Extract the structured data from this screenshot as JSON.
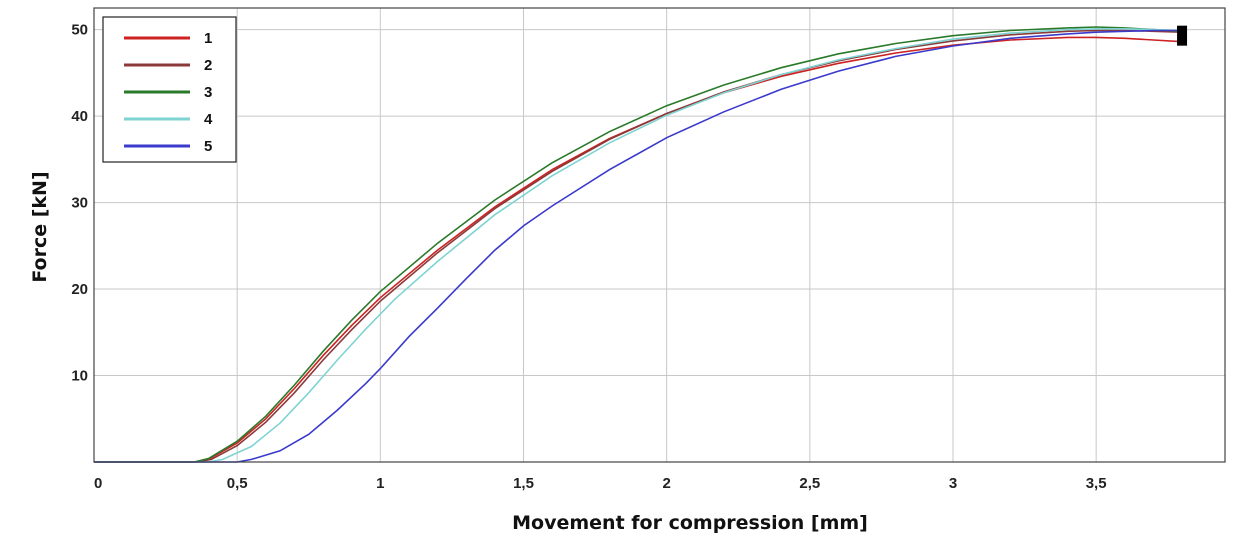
{
  "chart_data": {
    "type": "line",
    "title": "",
    "xlabel": "Movement for compression [mm]",
    "ylabel": "Force [kN]",
    "xlim": [
      0,
      3.95
    ],
    "ylim": [
      0,
      52.5
    ],
    "x_ticks": [
      0,
      0.5,
      1,
      1.5,
      2,
      2.5,
      3,
      3.5
    ],
    "x_tick_labels": [
      "0",
      "0,5",
      "1",
      "1,5",
      "2",
      "2,5",
      "3",
      "3,5"
    ],
    "y_ticks": [
      10,
      20,
      30,
      40,
      50
    ],
    "y_tick_labels": [
      "10",
      "20",
      "30",
      "40",
      "50"
    ],
    "grid": true,
    "legend_position": "top-left",
    "series": [
      {
        "name": "1",
        "color": "#cc2222",
        "points": [
          [
            0,
            0
          ],
          [
            0.35,
            0
          ],
          [
            0.4,
            0.3
          ],
          [
            0.5,
            2.2
          ],
          [
            0.6,
            5.0
          ],
          [
            0.7,
            8.5
          ],
          [
            0.8,
            12.3
          ],
          [
            0.9,
            15.8
          ],
          [
            1.0,
            19.0
          ],
          [
            1.2,
            24.5
          ],
          [
            1.4,
            29.5
          ],
          [
            1.6,
            33.8
          ],
          [
            1.8,
            37.4
          ],
          [
            2.0,
            40.3
          ],
          [
            2.2,
            42.7
          ],
          [
            2.4,
            44.6
          ],
          [
            2.6,
            46.1
          ],
          [
            2.8,
            47.3
          ],
          [
            3.0,
            48.2
          ],
          [
            3.2,
            48.8
          ],
          [
            3.4,
            49.1
          ],
          [
            3.5,
            49.1
          ],
          [
            3.6,
            49.0
          ],
          [
            3.7,
            48.8
          ],
          [
            3.8,
            48.6
          ]
        ]
      },
      {
        "name": "2",
        "color": "#8b3a3a",
        "points": [
          [
            0,
            0
          ],
          [
            0.36,
            0
          ],
          [
            0.41,
            0.3
          ],
          [
            0.5,
            1.9
          ],
          [
            0.6,
            4.6
          ],
          [
            0.7,
            8.0
          ],
          [
            0.8,
            11.8
          ],
          [
            0.9,
            15.3
          ],
          [
            1.0,
            18.6
          ],
          [
            1.2,
            24.2
          ],
          [
            1.4,
            29.3
          ],
          [
            1.6,
            33.6
          ],
          [
            1.8,
            37.3
          ],
          [
            2.0,
            40.3
          ],
          [
            2.2,
            42.8
          ],
          [
            2.4,
            44.8
          ],
          [
            2.6,
            46.4
          ],
          [
            2.8,
            47.7
          ],
          [
            3.0,
            48.7
          ],
          [
            3.2,
            49.4
          ],
          [
            3.4,
            49.8
          ],
          [
            3.5,
            49.9
          ],
          [
            3.6,
            49.9
          ],
          [
            3.7,
            49.8
          ],
          [
            3.8,
            49.7
          ]
        ]
      },
      {
        "name": "3",
        "color": "#2a7a2a",
        "points": [
          [
            0,
            0
          ],
          [
            0.35,
            0
          ],
          [
            0.4,
            0.4
          ],
          [
            0.5,
            2.4
          ],
          [
            0.6,
            5.3
          ],
          [
            0.7,
            8.9
          ],
          [
            0.8,
            12.8
          ],
          [
            0.9,
            16.4
          ],
          [
            1.0,
            19.7
          ],
          [
            1.2,
            25.3
          ],
          [
            1.4,
            30.3
          ],
          [
            1.6,
            34.6
          ],
          [
            1.8,
            38.2
          ],
          [
            2.0,
            41.2
          ],
          [
            2.2,
            43.6
          ],
          [
            2.4,
            45.6
          ],
          [
            2.6,
            47.2
          ],
          [
            2.8,
            48.4
          ],
          [
            3.0,
            49.3
          ],
          [
            3.2,
            49.9
          ],
          [
            3.4,
            50.2
          ],
          [
            3.5,
            50.3
          ],
          [
            3.6,
            50.2
          ],
          [
            3.7,
            50.0
          ],
          [
            3.8,
            49.8
          ]
        ]
      },
      {
        "name": "4",
        "color": "#7fd3d3",
        "points": [
          [
            0,
            0
          ],
          [
            0.4,
            0
          ],
          [
            0.45,
            0.3
          ],
          [
            0.55,
            1.8
          ],
          [
            0.65,
            4.5
          ],
          [
            0.75,
            8.0
          ],
          [
            0.85,
            11.8
          ],
          [
            0.95,
            15.4
          ],
          [
            1.05,
            18.8
          ],
          [
            1.2,
            23.2
          ],
          [
            1.4,
            28.6
          ],
          [
            1.6,
            33.1
          ],
          [
            1.8,
            36.9
          ],
          [
            2.0,
            40.1
          ],
          [
            2.2,
            42.7
          ],
          [
            2.4,
            44.8
          ],
          [
            2.6,
            46.5
          ],
          [
            2.8,
            47.8
          ],
          [
            3.0,
            48.9
          ],
          [
            3.2,
            49.6
          ],
          [
            3.4,
            50.0
          ],
          [
            3.5,
            50.1
          ],
          [
            3.6,
            50.1
          ],
          [
            3.7,
            50.0
          ],
          [
            3.8,
            49.9
          ]
        ]
      },
      {
        "name": "5",
        "color": "#3a3acc",
        "points": [
          [
            0,
            0
          ],
          [
            0.5,
            0
          ],
          [
            0.55,
            0.3
          ],
          [
            0.65,
            1.3
          ],
          [
            0.75,
            3.2
          ],
          [
            0.85,
            6.0
          ],
          [
            0.95,
            9.1
          ],
          [
            1.0,
            10.8
          ],
          [
            1.1,
            14.5
          ],
          [
            1.2,
            17.8
          ],
          [
            1.3,
            21.2
          ],
          [
            1.4,
            24.5
          ],
          [
            1.5,
            27.3
          ],
          [
            1.6,
            29.6
          ],
          [
            1.8,
            33.8
          ],
          [
            2.0,
            37.5
          ],
          [
            2.2,
            40.5
          ],
          [
            2.4,
            43.1
          ],
          [
            2.6,
            45.2
          ],
          [
            2.8,
            46.9
          ],
          [
            3.0,
            48.1
          ],
          [
            3.2,
            49.0
          ],
          [
            3.4,
            49.5
          ],
          [
            3.5,
            49.7
          ],
          [
            3.6,
            49.8
          ],
          [
            3.7,
            49.9
          ],
          [
            3.8,
            49.9
          ]
        ]
      }
    ],
    "end_marker": {
      "x": 3.8,
      "y": 49.3,
      "color": "#000000"
    }
  }
}
